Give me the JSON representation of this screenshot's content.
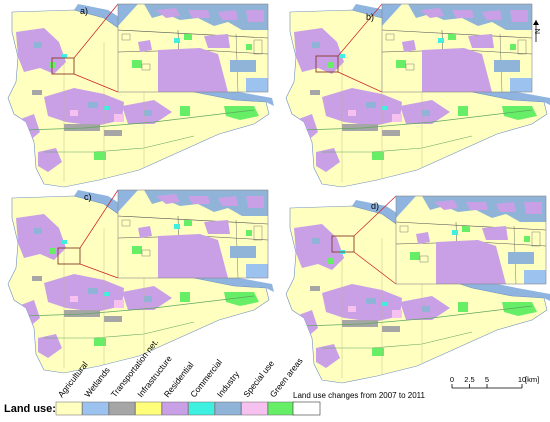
{
  "panels": [
    {
      "label": "a)",
      "variant": 0
    },
    {
      "label": "b)",
      "variant": 1
    },
    {
      "label": "c)",
      "variant": 2
    },
    {
      "label": "d)",
      "variant": 3
    }
  ],
  "north_arrow": {
    "label": "N"
  },
  "legend": {
    "title": "Land use:",
    "categories": [
      {
        "name": "Agricultural",
        "color": "#ffffc0"
      },
      {
        "name": "Wetlands",
        "color": "#9cc3f0"
      },
      {
        "name": "Transportation net.",
        "color": "#a6a6a6"
      },
      {
        "name": "Infrastructure",
        "color": "#ffff7a"
      },
      {
        "name": "Residential",
        "color": "#c9a0e6"
      },
      {
        "name": "Commercial",
        "color": "#3ef0e0"
      },
      {
        "name": "Industry",
        "color": "#8fb4d8"
      },
      {
        "name": "Special use",
        "color": "#f6c0ef"
      },
      {
        "name": "Green areas",
        "color": "#66ee66"
      }
    ]
  },
  "changes_legend": {
    "label": "Land use changes from 2007 to 2011"
  },
  "scale_bar": {
    "ticks": [
      "0",
      "2.5",
      "5",
      "10"
    ],
    "unit": "[km]"
  },
  "colors": {
    "river": "#8fb4e0",
    "agricultural": "#ffffc0",
    "residential": "#c9a0e6",
    "transport": "#a6a6a6",
    "green": "#66ee66",
    "commercial": "#3ef0e0",
    "industry": "#8fb4d8",
    "special": "#f6c0ef",
    "callout_line": "#cc2020"
  }
}
